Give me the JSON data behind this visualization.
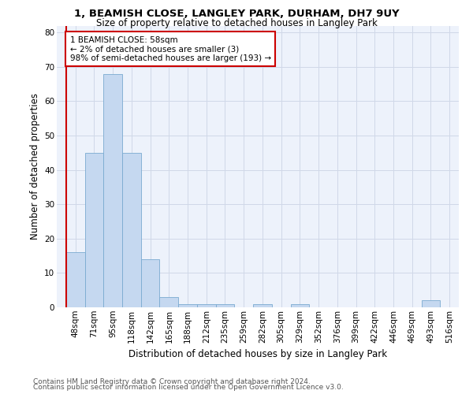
{
  "title1": "1, BEAMISH CLOSE, LANGLEY PARK, DURHAM, DH7 9UY",
  "title2": "Size of property relative to detached houses in Langley Park",
  "xlabel": "Distribution of detached houses by size in Langley Park",
  "ylabel": "Number of detached properties",
  "footer1": "Contains HM Land Registry data © Crown copyright and database right 2024.",
  "footer2": "Contains public sector information licensed under the Open Government Licence v3.0.",
  "annotation_line1": "1 BEAMISH CLOSE: 58sqm",
  "annotation_line2": "← 2% of detached houses are smaller (3)",
  "annotation_line3": "98% of semi-detached houses are larger (193) →",
  "bar_color": "#c5d8f0",
  "bar_edge_color": "#7aaad0",
  "grid_color": "#d0d8e8",
  "annotation_box_color": "#cc0000",
  "categories": [
    "48sqm",
    "71sqm",
    "95sqm",
    "118sqm",
    "142sqm",
    "165sqm",
    "188sqm",
    "212sqm",
    "235sqm",
    "259sqm",
    "282sqm",
    "305sqm",
    "329sqm",
    "352sqm",
    "376sqm",
    "399sqm",
    "422sqm",
    "446sqm",
    "469sqm",
    "493sqm",
    "516sqm"
  ],
  "values": [
    16,
    45,
    68,
    45,
    14,
    3,
    1,
    1,
    1,
    0,
    1,
    0,
    1,
    0,
    0,
    0,
    0,
    0,
    0,
    2,
    0
  ],
  "ylim": [
    0,
    82
  ],
  "yticks": [
    0,
    10,
    20,
    30,
    40,
    50,
    60,
    70,
    80
  ],
  "bg_color": "#edf2fb",
  "red_line_x": -0.5,
  "title1_fontsize": 9.5,
  "title2_fontsize": 8.5,
  "ylabel_fontsize": 8.5,
  "xlabel_fontsize": 8.5,
  "tick_fontsize": 7.5,
  "annot_fontsize": 7.5,
  "footer_fontsize": 6.5
}
